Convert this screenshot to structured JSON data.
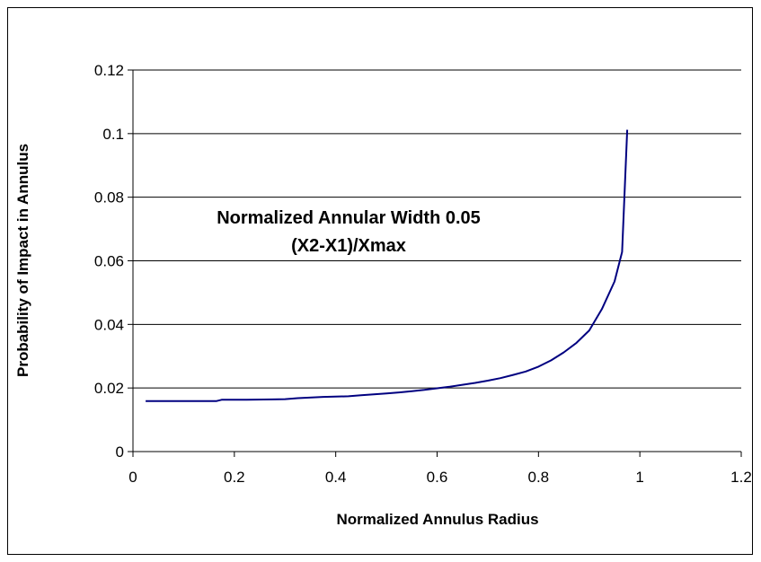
{
  "chart_data": {
    "type": "line",
    "title": "",
    "xlabel": "Normalized Annulus Radius",
    "ylabel": "Probability of Impact in Annulus",
    "xlim": [
      0,
      1.2
    ],
    "ylim": [
      0,
      0.12
    ],
    "xticks": [
      "0",
      "0.2",
      "0.4",
      "0.6",
      "0.8",
      "1",
      "1.2"
    ],
    "yticks": [
      "0",
      "0.02",
      "0.04",
      "0.06",
      "0.08",
      "0.1",
      "0.12"
    ],
    "grid": "horizontal",
    "legend": "none",
    "annotation": {
      "line1": "Normalized Annular Width 0.05",
      "line2": "(X2-X1)/Xmax"
    },
    "series": [
      {
        "color": "#000080",
        "x": [
          0.025,
          0.075,
          0.125,
          0.165,
          0.175,
          0.225,
          0.275,
          0.3,
          0.325,
          0.375,
          0.425,
          0.45,
          0.475,
          0.5,
          0.525,
          0.55,
          0.575,
          0.6,
          0.625,
          0.65,
          0.675,
          0.7,
          0.725,
          0.75,
          0.775,
          0.8,
          0.825,
          0.85,
          0.875,
          0.9,
          0.925,
          0.95,
          0.965,
          0.975
        ],
        "y": [
          0.0159,
          0.0159,
          0.0159,
          0.0159,
          0.0163,
          0.0163,
          0.0164,
          0.0165,
          0.0168,
          0.0172,
          0.0174,
          0.0177,
          0.018,
          0.0183,
          0.0186,
          0.019,
          0.0194,
          0.0199,
          0.0204,
          0.021,
          0.0216,
          0.0223,
          0.0231,
          0.0241,
          0.0252,
          0.0267,
          0.0287,
          0.0312,
          0.0342,
          0.0381,
          0.0448,
          0.0535,
          0.0628,
          0.1012
        ]
      }
    ]
  }
}
